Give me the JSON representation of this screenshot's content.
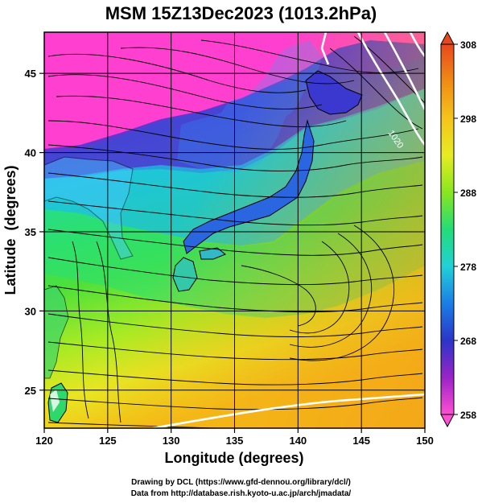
{
  "title": "MSM 15Z13Dec2023 (1013.2hPa)",
  "map": {
    "x_axis_label": "Longitude (degrees)",
    "y_axis_label": "Latitude  (degrees)",
    "x_ticks": [
      "120",
      "125",
      "130",
      "135",
      "140",
      "145",
      "150"
    ],
    "y_ticks": [
      "25",
      "30",
      "35",
      "40",
      "45"
    ],
    "lon_range": [
      120,
      150
    ],
    "lat_range": [
      22.6,
      47.6
    ],
    "grid": true,
    "gridlines_lon": [
      125,
      130,
      135,
      140,
      145
    ],
    "gridlines_lat": [
      25,
      30,
      35,
      40,
      45
    ],
    "contour_label": "1020"
  },
  "colorbar": {
    "ticks": [
      "308",
      "298",
      "288",
      "278",
      "268",
      "258"
    ],
    "range": [
      258,
      308
    ],
    "stops": [
      "#ff4fd2",
      "#9a23c8",
      "#2a36c8",
      "#1a7ee6",
      "#22d1d6",
      "#22dd78",
      "#88e61e",
      "#e6ec22",
      "#f5c41a",
      "#f08c14",
      "#e8471e"
    ]
  },
  "credits": {
    "line1": "Drawing by DCL (https://www.gfd-dennou.org/library/dcl/)",
    "line2": "Data from http://database.rish.kyoto-u.ac.jp/arch/jmadata/"
  }
}
